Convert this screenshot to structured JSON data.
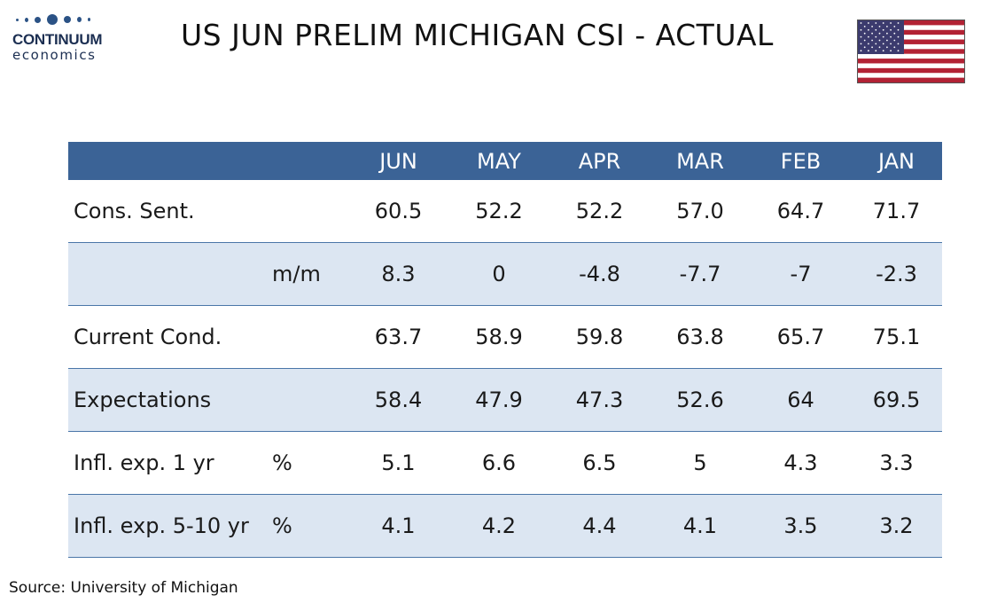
{
  "logo": {
    "line1": "CONTINUUM",
    "line2": "economics"
  },
  "title": "US JUN PRELIM MICHIGAN CSI - ACTUAL",
  "colors": {
    "header_bg": "#3b6396",
    "row_shade": "#dce6f2",
    "rule": "#4a76a8",
    "brand": "#1c2f52"
  },
  "flag_icon": "us-flag-icon",
  "table": {
    "columns": [
      "JUN",
      "MAY",
      "APR",
      "MAR",
      "FEB",
      "JAN"
    ],
    "rows": [
      {
        "label": "Cons. Sent.",
        "unit": "",
        "values": [
          "60.5",
          "52.2",
          "52.2",
          "57.0",
          "64.7",
          "71.7"
        ],
        "shaded": false
      },
      {
        "label": "",
        "unit": "m/m",
        "values": [
          "8.3",
          "0",
          "-4.8",
          "-7.7",
          "-7",
          "-2.3"
        ],
        "shaded": true
      },
      {
        "label": "Current Cond.",
        "unit": "",
        "values": [
          "63.7",
          "58.9",
          "59.8",
          "63.8",
          "65.7",
          "75.1"
        ],
        "shaded": false
      },
      {
        "label": "Expectations",
        "unit": "",
        "values": [
          "58.4",
          "47.9",
          "47.3",
          "52.6",
          "64",
          "69.5"
        ],
        "shaded": true
      },
      {
        "label": "Infl. exp. 1 yr",
        "unit": "%",
        "values": [
          "5.1",
          "6.6",
          "6.5",
          "5",
          "4.3",
          "3.3"
        ],
        "shaded": false
      },
      {
        "label": "Infl. exp. 5-10 yr",
        "unit": "%",
        "values": [
          "4.1",
          "4.2",
          "4.4",
          "4.1",
          "3.5",
          "3.2"
        ],
        "shaded": true
      }
    ]
  },
  "source": "Source: University of Michigan"
}
